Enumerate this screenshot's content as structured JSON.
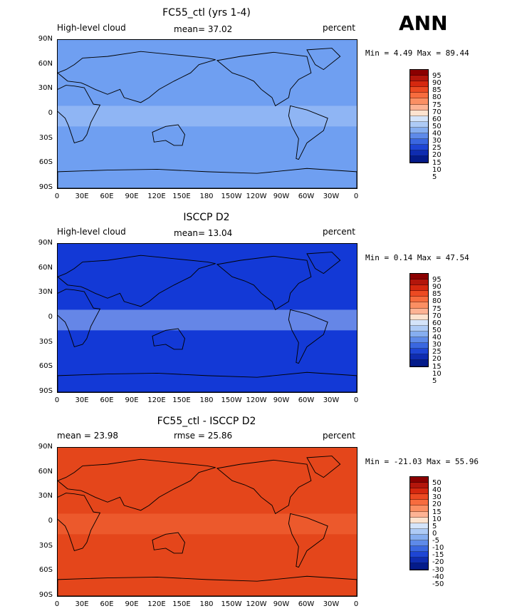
{
  "season": "ANN",
  "panels": [
    {
      "title": "FC55_ctl (yrs 1-4)",
      "left_label": "High-level cloud",
      "center_label": "mean=  37.02",
      "right_label": "percent",
      "minmax": "Min =   4.49 Max =  89.44",
      "scheme": "full",
      "base_color": "#6f9ff1"
    },
    {
      "title": "ISCCP D2",
      "left_label": "High-level cloud",
      "center_label": "mean=  13.04",
      "right_label": "percent",
      "minmax": "Min =   0.14 Max =  47.54",
      "scheme": "full",
      "base_color": "#1339d6"
    },
    {
      "title": "FC55_ctl - ISCCP D2",
      "left_label": "mean =  23.98",
      "center_label": "rmse =  25.86",
      "right_label": "percent",
      "minmax": "Min = -21.03 Max =  55.96",
      "scheme": "diff",
      "base_color": "#e4461b"
    }
  ],
  "lat_ticks": [
    "90N",
    "60N",
    "30N",
    "0",
    "30S",
    "60S",
    "90S"
  ],
  "lon_ticks": [
    "0",
    "30E",
    "60E",
    "90E",
    "120E",
    "150E",
    "180",
    "150W",
    "120W",
    "90W",
    "60W",
    "30W",
    "0"
  ],
  "legend_full": {
    "labels": [
      "95",
      "90",
      "85",
      "80",
      "75",
      "70",
      "60",
      "50",
      "40",
      "30",
      "25",
      "20",
      "15",
      "10",
      "5"
    ],
    "colors": [
      "#8b0000",
      "#b3160b",
      "#d5280f",
      "#ec4a22",
      "#f76c3e",
      "#fb8f63",
      "#fdb394",
      "#fde3cf",
      "#d4e4fa",
      "#aecbf6",
      "#86aef0",
      "#5e8ae9",
      "#3a67e0",
      "#1e45d4",
      "#0f2cb0",
      "#041b8a"
    ]
  },
  "legend_diff": {
    "labels": [
      "50",
      "40",
      "30",
      "20",
      "15",
      "10",
      "5",
      "0",
      "-5",
      "-10",
      "-15",
      "-20",
      "-30",
      "-40",
      "-50"
    ],
    "colors": [
      "#8b0000",
      "#b3160b",
      "#d5280f",
      "#ec4a22",
      "#f76c3e",
      "#fb8f63",
      "#fdb394",
      "#fde3cf",
      "#d4e4fa",
      "#aecbf6",
      "#86aef0",
      "#5e8ae9",
      "#3a67e0",
      "#1e45d4",
      "#0f2cb0",
      "#041b8a"
    ]
  }
}
